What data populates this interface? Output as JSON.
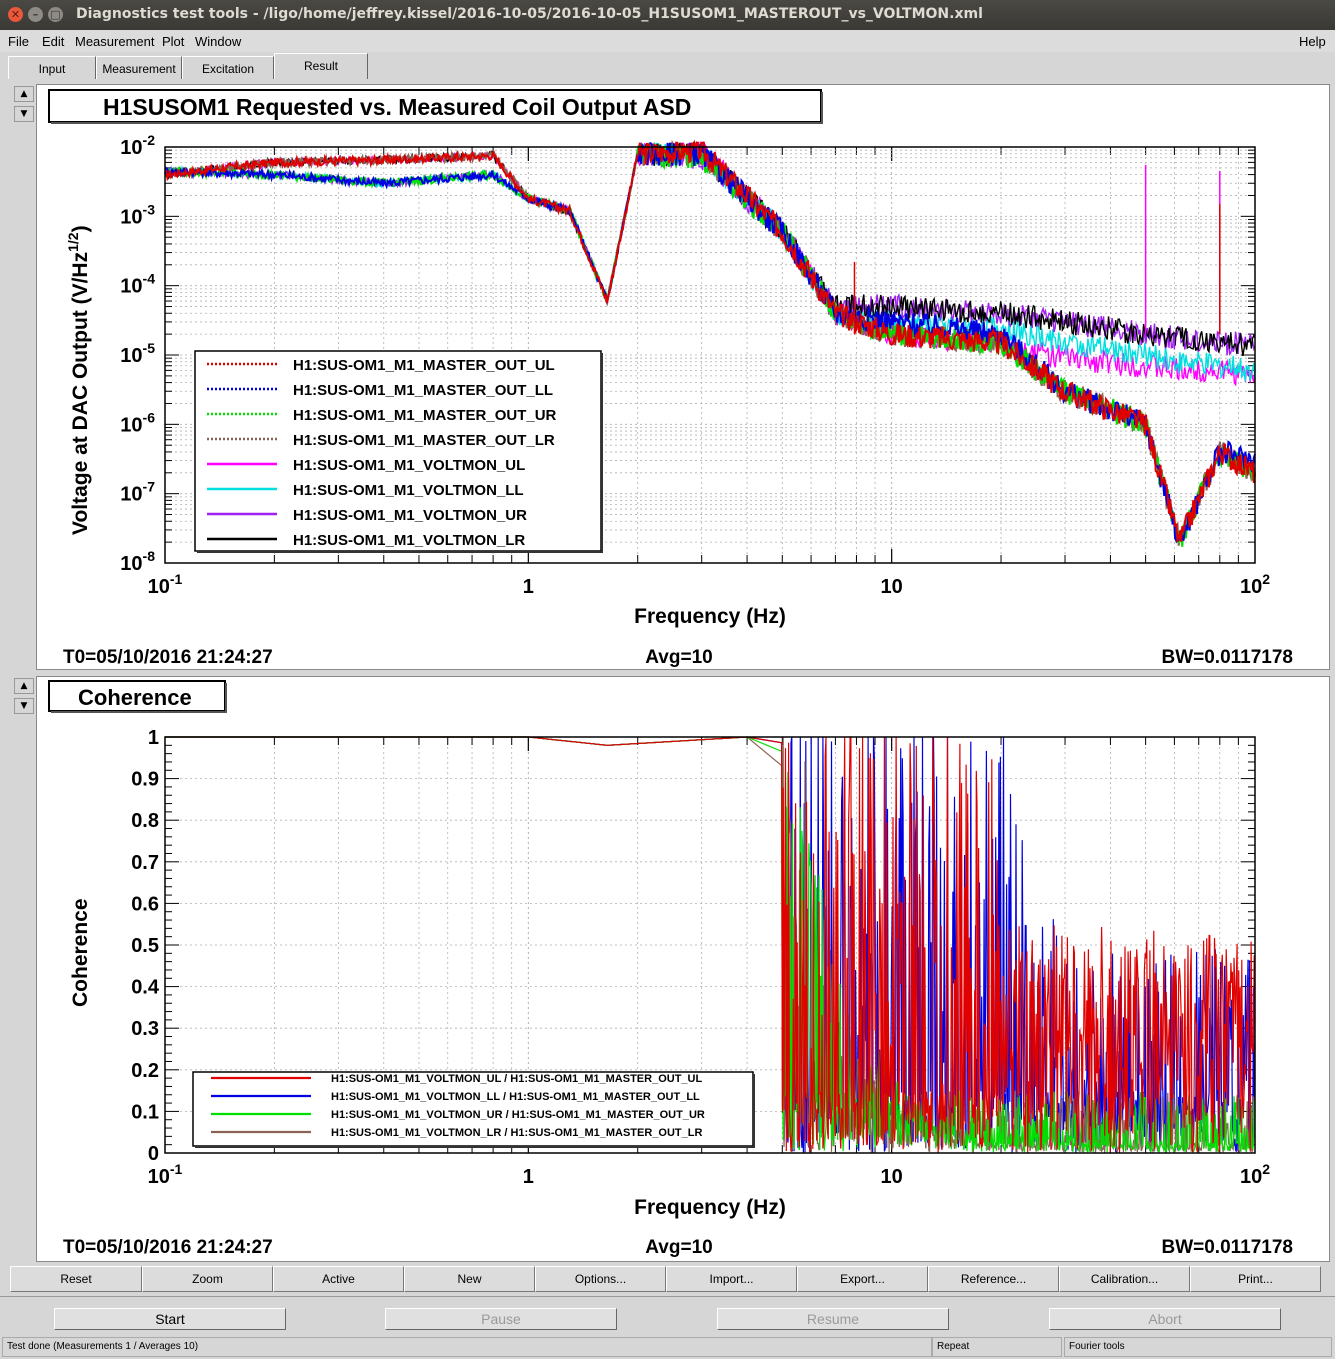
{
  "window": {
    "title": "Diagnostics test tools - /ligo/home/jeffrey.kissel/2016-10-05/2016-10-05_H1SUSOM1_MASTEROUT_vs_VOLTMON.xml"
  },
  "menu": [
    "File",
    "Edit",
    "Measurement",
    "Plot",
    "Window"
  ],
  "menu_help": "Help",
  "tabs": [
    "Input",
    "Measurement",
    "Excitation",
    "Result"
  ],
  "active_tab": "Result",
  "plot1": {
    "title": "H1SUSOM1 Requested vs. Measured Coil Output ASD",
    "ylabel": "Voltage at DAC Output (V/Hz",
    "ylabel_sup": "1/2",
    "ylabel_close": ")",
    "xlabel": "Frequency (Hz)",
    "t0": "T0=05/10/2016 21:24:27",
    "avg": "Avg=10",
    "bw": "BW=0.0117178",
    "legend": [
      {
        "name": "H1:SUS-OM1_M1_MASTER_OUT_UL",
        "color": "#e00000",
        "dash": "dot"
      },
      {
        "name": "H1:SUS-OM1_M1_MASTER_OUT_LL",
        "color": "#0000e0",
        "dash": "dot"
      },
      {
        "name": "H1:SUS-OM1_M1_MASTER_OUT_UR",
        "color": "#00e000",
        "dash": "dot"
      },
      {
        "name": "H1:SUS-OM1_M1_MASTER_OUT_LR",
        "color": "#8b6355",
        "dash": "dot"
      },
      {
        "name": "H1:SUS-OM1_M1_VOLTMON_UL",
        "color": "#ff00ff",
        "dash": "solid"
      },
      {
        "name": "H1:SUS-OM1_M1_VOLTMON_LL",
        "color": "#00e0e0",
        "dash": "solid"
      },
      {
        "name": "H1:SUS-OM1_M1_VOLTMON_UR",
        "color": "#a020f0",
        "dash": "solid"
      },
      {
        "name": "H1:SUS-OM1_M1_VOLTMON_LR",
        "color": "#000000",
        "dash": "solid"
      }
    ],
    "y_ticks": [
      "10-8",
      "10-7",
      "10-6",
      "10-5",
      "10-4",
      "10-3",
      "10-2"
    ],
    "x_ticks": [
      "10-1",
      "1",
      "10",
      "102"
    ]
  },
  "plot2": {
    "title": "Coherence",
    "ylabel": "Coherence",
    "xlabel": "Frequency (Hz)",
    "t0": "T0=05/10/2016 21:24:27",
    "avg": "Avg=10",
    "bw": "BW=0.0117178",
    "legend": [
      {
        "name": "H1:SUS-OM1_M1_VOLTMON_UL / H1:SUS-OM1_M1_MASTER_OUT_UL",
        "color": "#e00000"
      },
      {
        "name": "H1:SUS-OM1_M1_VOLTMON_LL / H1:SUS-OM1_M1_MASTER_OUT_LL",
        "color": "#0000e0"
      },
      {
        "name": "H1:SUS-OM1_M1_VOLTMON_UR / H1:SUS-OM1_M1_MASTER_OUT_UR",
        "color": "#00e000"
      },
      {
        "name": "H1:SUS-OM1_M1_VOLTMON_LR / H1:SUS-OM1_M1_MASTER_OUT_LR",
        "color": "#8b6355"
      }
    ],
    "y_ticks": [
      "0",
      "0.1",
      "0.2",
      "0.3",
      "0.4",
      "0.5",
      "0.6",
      "0.7",
      "0.8",
      "0.9",
      "1"
    ],
    "x_ticks": [
      "10-1",
      "1",
      "10",
      "102"
    ]
  },
  "chart_data": [
    {
      "type": "line",
      "title": "H1SUSOM1 Requested vs. Measured Coil Output ASD",
      "xlabel": "Frequency (Hz)",
      "ylabel": "Voltage at DAC Output (V/Hz^1/2)",
      "xscale": "log",
      "yscale": "log",
      "xlim": [
        0.1,
        100
      ],
      "ylim": [
        1e-08,
        0.01
      ],
      "grid": true,
      "legend_position": "bottom-left",
      "x": [
        0.1,
        0.2,
        0.4,
        0.8,
        1.0,
        1.3,
        1.65,
        2.0,
        3.0,
        5.0,
        7.0,
        10,
        20,
        30,
        50,
        62,
        80,
        100
      ],
      "series": [
        {
          "name": "H1:SUS-OM1_M1_MASTER_OUT_UL",
          "values": [
            0.004,
            0.006,
            0.0065,
            0.0075,
            0.0018,
            0.0012,
            6e-05,
            0.008,
            0.009,
            0.0006,
            4e-05,
            2e-05,
            1.5e-05,
            3e-06,
            1e-06,
            2e-08,
            4e-07,
            2e-07
          ]
        },
        {
          "name": "H1:SUS-OM1_M1_MASTER_OUT_LL",
          "values": [
            0.0045,
            0.004,
            0.003,
            0.004,
            0.0018,
            0.0012,
            6e-05,
            0.008,
            0.008,
            0.0006,
            4e-05,
            3e-05,
            2e-05,
            3e-06,
            1e-06,
            2e-08,
            4e-07,
            3e-07
          ]
        },
        {
          "name": "H1:SUS-OM1_M1_MASTER_OUT_UR",
          "values": [
            0.0045,
            0.004,
            0.003,
            0.004,
            0.0018,
            0.0012,
            6e-05,
            0.008,
            0.007,
            0.0006,
            4e-05,
            2e-05,
            1.5e-05,
            3e-06,
            1e-06,
            2e-08,
            4e-07,
            2e-07
          ]
        },
        {
          "name": "H1:SUS-OM1_M1_MASTER_OUT_LR",
          "values": [
            0.004,
            0.006,
            0.0065,
            0.0075,
            0.0018,
            0.0012,
            6e-05,
            0.008,
            0.008,
            0.0006,
            4e-05,
            2e-05,
            1.5e-05,
            3e-06,
            1e-06,
            2e-08,
            4e-07,
            2e-07
          ]
        },
        {
          "name": "H1:SUS-OM1_M1_VOLTMON_UL",
          "values": [
            0.004,
            0.006,
            0.0065,
            0.0075,
            0.0018,
            0.0012,
            6e-05,
            0.008,
            0.009,
            0.0006,
            4e-05,
            2e-05,
            1.5e-05,
            9e-06,
            7e-06,
            6e-06,
            6e-06,
            5e-06
          ]
        },
        {
          "name": "H1:SUS-OM1_M1_VOLTMON_LL",
          "values": [
            0.0045,
            0.004,
            0.003,
            0.004,
            0.0018,
            0.0012,
            6e-05,
            0.008,
            0.008,
            0.0006,
            4e-05,
            3e-05,
            2.5e-05,
            1.5e-05,
            1e-05,
            8e-06,
            7e-06,
            6e-06
          ]
        },
        {
          "name": "H1:SUS-OM1_M1_VOLTMON_UR",
          "values": [
            0.0045,
            0.004,
            0.003,
            0.004,
            0.0018,
            0.0012,
            6e-05,
            0.008,
            0.007,
            0.0006,
            5e-05,
            5e-05,
            4e-05,
            3e-05,
            2e-05,
            1.8e-05,
            1.5e-05,
            1.4e-05
          ]
        },
        {
          "name": "H1:SUS-OM1_M1_VOLTMON_LR",
          "values": [
            0.004,
            0.006,
            0.0065,
            0.0075,
            0.0018,
            0.0012,
            6e-05,
            0.008,
            0.008,
            0.0006,
            5e-05,
            5e-05,
            4e-05,
            3e-05,
            2e-05,
            1.8e-05,
            1.5e-05,
            1.4e-05
          ]
        }
      ]
    },
    {
      "type": "line",
      "title": "Coherence",
      "xlabel": "Frequency (Hz)",
      "ylabel": "Coherence",
      "xscale": "log",
      "xlim": [
        0.1,
        100
      ],
      "ylim": [
        0,
        1
      ],
      "grid": true,
      "legend_position": "bottom-left",
      "x": [
        0.1,
        1.0,
        1.65,
        4.0,
        5.5,
        6.5,
        8,
        10,
        15,
        20,
        25,
        30,
        50,
        100
      ],
      "series": [
        {
          "name": "H1:SUS-OM1_M1_VOLTMON_UL / H1:SUS-OM1_M1_MASTER_OUT_UL",
          "values": [
            1,
            1,
            0.98,
            1,
            0.98,
            0.95,
            0.9,
            0.85,
            0.8,
            0.75,
            0.4,
            0.3,
            0.3,
            0.3
          ]
        },
        {
          "name": "H1:SUS-OM1_M1_VOLTMON_LL / H1:SUS-OM1_M1_MASTER_OUT_LL",
          "values": [
            1,
            1,
            0.98,
            1,
            0.98,
            0.95,
            0.92,
            0.9,
            0.85,
            0.85,
            0.55,
            0.4,
            0.4,
            0.4
          ]
        },
        {
          "name": "H1:SUS-OM1_M1_VOLTMON_UR / H1:SUS-OM1_M1_MASTER_OUT_UR",
          "values": [
            1,
            1,
            0.98,
            1,
            0.95,
            0.6,
            0.3,
            0.15,
            0.05,
            0.02,
            0.02,
            0.02,
            0.02,
            0.02
          ]
        },
        {
          "name": "H1:SUS-OM1_M1_VOLTMON_LR / H1:SUS-OM1_M1_MASTER_OUT_LR",
          "values": [
            1,
            1,
            0.98,
            1,
            0.9,
            0.5,
            0.2,
            0.1,
            0.05,
            0.02,
            0.02,
            0.02,
            0.02,
            0.02
          ]
        }
      ]
    }
  ],
  "toolbar": [
    "Reset",
    "Zoom",
    "Active",
    "New",
    "Options...",
    "Import...",
    "Export...",
    "Reference...",
    "Calibration...",
    "Print..."
  ],
  "controls": {
    "start": "Start",
    "pause": "Pause",
    "resume": "Resume",
    "abort": "Abort"
  },
  "status": {
    "message": "Test done (Measurements 1 / Averages 10)",
    "mode": "Repeat",
    "tool": "Fourier tools"
  }
}
